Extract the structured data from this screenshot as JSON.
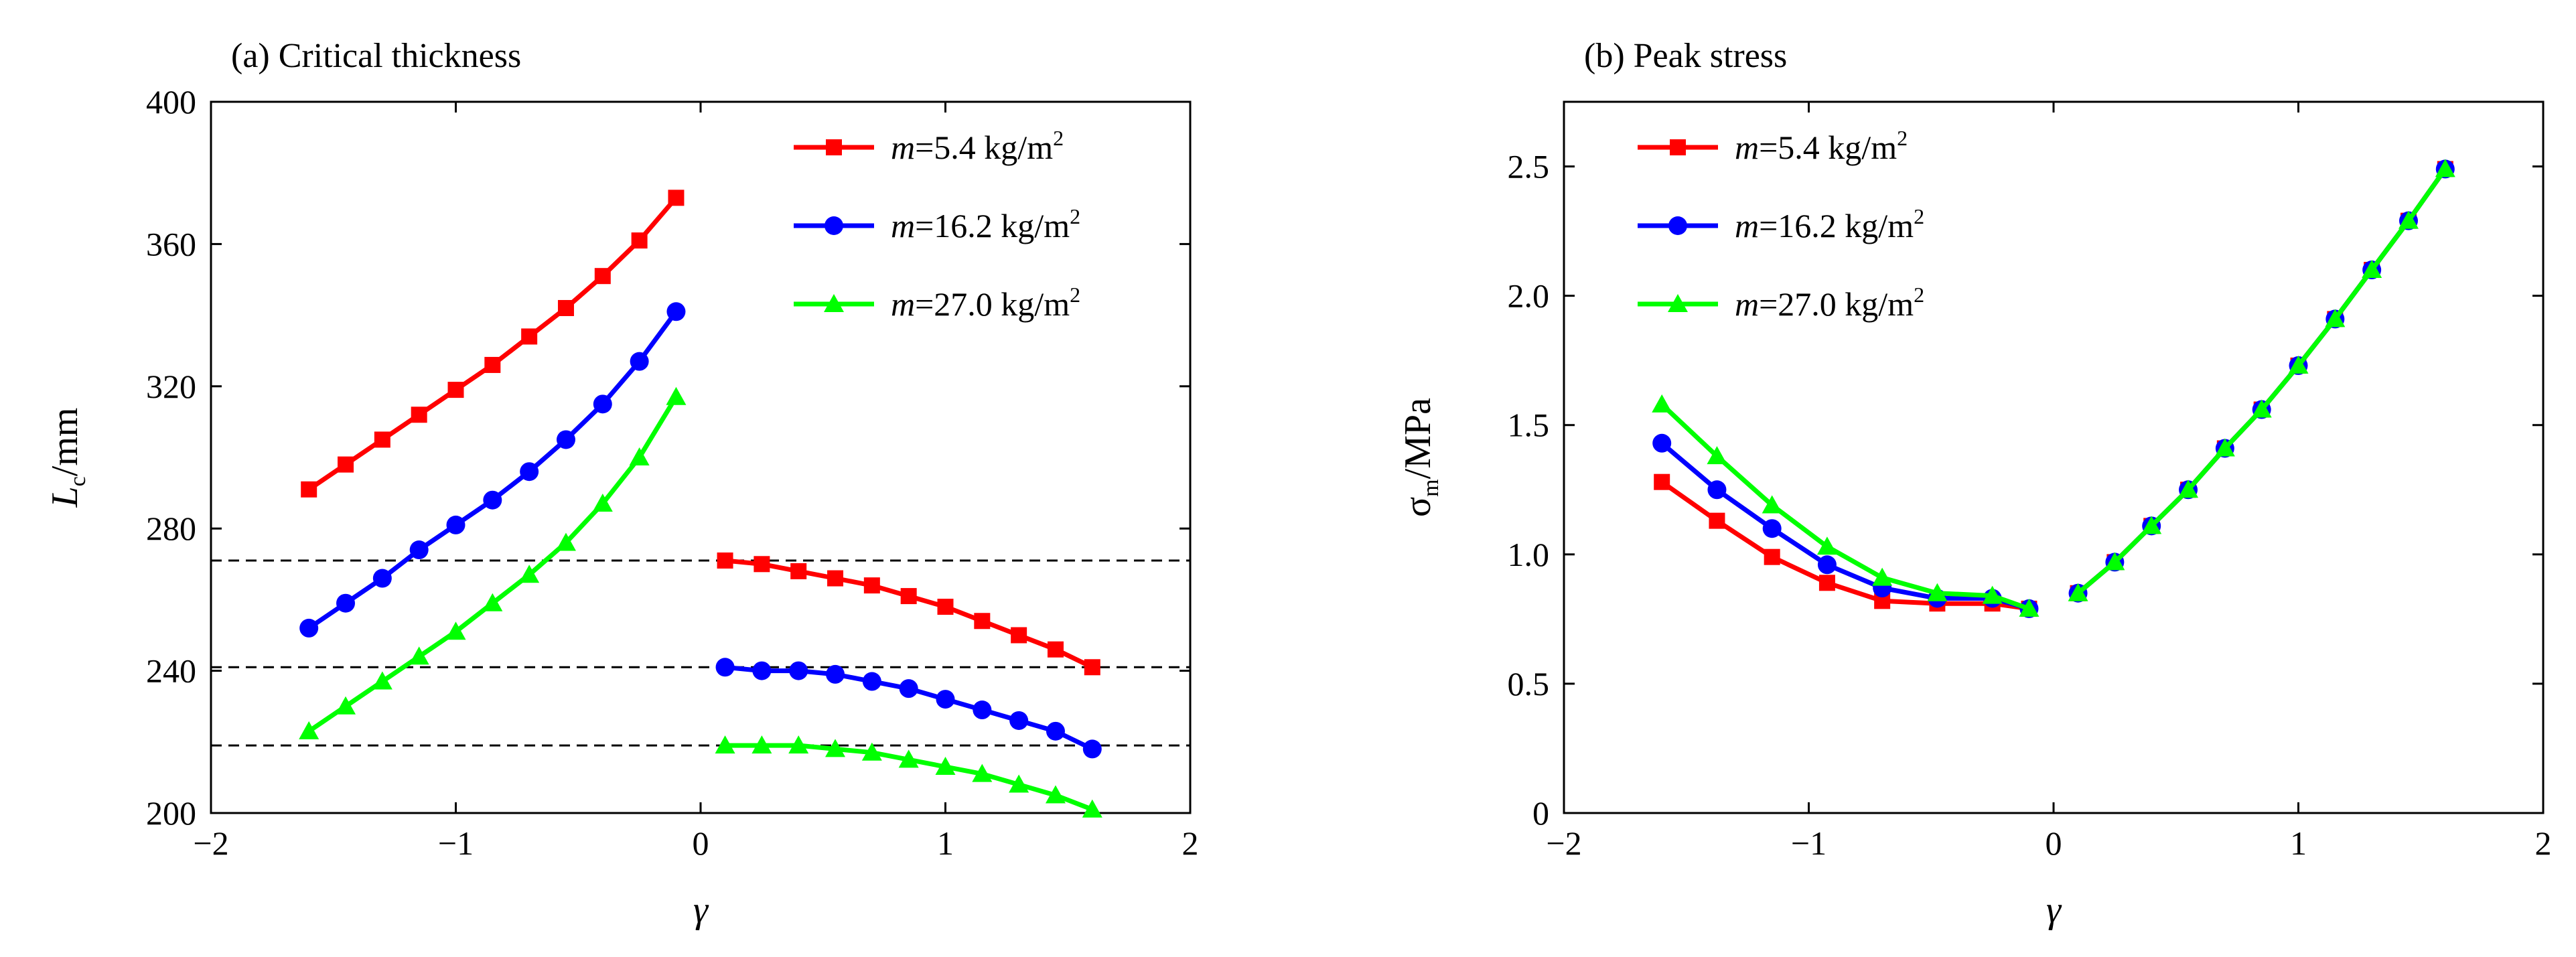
{
  "chart_data": [
    {
      "type": "line",
      "title": "(a) Critical thickness",
      "xlabel": "γ",
      "ylabel": {
        "main": "L",
        "sub": "c",
        "unit": "/mm"
      },
      "xlim": [
        -2,
        2
      ],
      "ylim": [
        200,
        400
      ],
      "xticks": [
        -2,
        -1,
        0,
        1,
        2
      ],
      "xtick_labels": [
        "−2",
        "−1",
        "0",
        "1",
        "2"
      ],
      "yticks": [
        200,
        240,
        280,
        320,
        360,
        400
      ],
      "ytick_labels": [
        "200",
        "240",
        "280",
        "320",
        "360",
        "400"
      ],
      "grid": false,
      "legend_position": "top-right",
      "reference_lines": [
        {
          "y": 271,
          "style": "dashed",
          "color": "#000000"
        },
        {
          "y": 241,
          "style": "dashed",
          "color": "#000000"
        },
        {
          "y": 219,
          "style": "dashed",
          "color": "#000000"
        }
      ],
      "series": [
        {
          "name": "m=5.4 kg/m²",
          "legend": {
            "var": "m",
            "rest": "=5.4 kg/m",
            "sup": "2"
          },
          "color": "#ff0000",
          "marker": "square",
          "segments": [
            {
              "x": [
                -1.6,
                -1.45,
                -1.3,
                -1.15,
                -1.0,
                -0.85,
                -0.7,
                -0.55,
                -0.4,
                -0.25,
                -0.1
              ],
              "y": [
                291,
                298,
                305,
                312,
                319,
                326,
                334,
                342,
                351,
                361,
                373
              ]
            },
            {
              "x": [
                0.1,
                0.25,
                0.4,
                0.55,
                0.7,
                0.85,
                1.0,
                1.15,
                1.3,
                1.45,
                1.6
              ],
              "y": [
                271,
                270,
                268,
                266,
                264,
                261,
                258,
                254,
                250,
                246,
                241
              ]
            }
          ]
        },
        {
          "name": "m=16.2 kg/m²",
          "legend": {
            "var": "m",
            "rest": "=16.2 kg/m",
            "sup": "2"
          },
          "color": "#0000ff",
          "marker": "circle",
          "segments": [
            {
              "x": [
                -1.6,
                -1.45,
                -1.3,
                -1.15,
                -1.0,
                -0.85,
                -0.7,
                -0.55,
                -0.4,
                -0.25,
                -0.1
              ],
              "y": [
                252,
                259,
                266,
                274,
                281,
                288,
                296,
                305,
                315,
                327,
                341
              ]
            },
            {
              "x": [
                0.1,
                0.25,
                0.4,
                0.55,
                0.7,
                0.85,
                1.0,
                1.15,
                1.3,
                1.45,
                1.6
              ],
              "y": [
                241,
                240,
                240,
                239,
                237,
                235,
                232,
                229,
                226,
                223,
                218
              ]
            }
          ]
        },
        {
          "name": "m=27.0 kg/m²",
          "legend": {
            "var": "m",
            "rest": "=27.0 kg/m",
            "sup": "2"
          },
          "color": "#00ff00",
          "marker": "triangle",
          "segments": [
            {
              "x": [
                -1.6,
                -1.45,
                -1.3,
                -1.15,
                -1.0,
                -0.85,
                -0.7,
                -0.55,
                -0.4,
                -0.25,
                -0.1
              ],
              "y": [
                223,
                230,
                237,
                244,
                251,
                259,
                267,
                276,
                287,
                300,
                317
              ]
            },
            {
              "x": [
                0.1,
                0.25,
                0.4,
                0.55,
                0.7,
                0.85,
                1.0,
                1.15,
                1.3,
                1.45,
                1.6
              ],
              "y": [
                219,
                219,
                219,
                218,
                217,
                215,
                213,
                211,
                208,
                205,
                201
              ]
            }
          ]
        }
      ]
    },
    {
      "type": "line",
      "title": "(b) Peak stress",
      "xlabel": "γ",
      "ylabel": {
        "main": "σ",
        "sub": "m",
        "unit": "/MPa"
      },
      "xlim": [
        -2,
        2
      ],
      "ylim": [
        0,
        2.75
      ],
      "xticks": [
        -2,
        -1,
        0,
        1,
        2
      ],
      "xtick_labels": [
        "−2",
        "−1",
        "0",
        "1",
        "2"
      ],
      "yticks": [
        0,
        0.5,
        1.0,
        1.5,
        2.0,
        2.5
      ],
      "ytick_labels": [
        "0",
        "0.5",
        "1.0",
        "1.5",
        "2.0",
        "2.5"
      ],
      "grid": false,
      "legend_position": "top-left",
      "series": [
        {
          "name": "m=5.4 kg/m²",
          "legend": {
            "var": "m",
            "rest": "=5.4 kg/m",
            "sup": "2"
          },
          "color": "#ff0000",
          "marker": "square",
          "segments": [
            {
              "x": [
                -1.6,
                -1.375,
                -1.15,
                -0.925,
                -0.7,
                -0.475,
                -0.25,
                -0.1
              ],
              "y": [
                1.28,
                1.13,
                0.99,
                0.89,
                0.82,
                0.81,
                0.81,
                0.79
              ]
            },
            {
              "x": [
                0.1,
                0.25,
                0.4,
                0.55,
                0.7,
                0.85,
                1.0,
                1.15,
                1.3,
                1.45,
                1.6
              ],
              "y": [
                0.85,
                0.97,
                1.11,
                1.25,
                1.41,
                1.56,
                1.73,
                1.91,
                2.1,
                2.29,
                2.49
              ]
            }
          ]
        },
        {
          "name": "m=16.2 kg/m²",
          "legend": {
            "var": "m",
            "rest": "=16.2 kg/m",
            "sup": "2"
          },
          "color": "#0000ff",
          "marker": "circle",
          "segments": [
            {
              "x": [
                -1.6,
                -1.375,
                -1.15,
                -0.925,
                -0.7,
                -0.475,
                -0.25,
                -0.1
              ],
              "y": [
                1.43,
                1.25,
                1.1,
                0.96,
                0.87,
                0.83,
                0.83,
                0.79
              ]
            },
            {
              "x": [
                0.1,
                0.25,
                0.4,
                0.55,
                0.7,
                0.85,
                1.0,
                1.15,
                1.3,
                1.45,
                1.6
              ],
              "y": [
                0.85,
                0.97,
                1.11,
                1.25,
                1.41,
                1.56,
                1.73,
                1.91,
                2.1,
                2.29,
                2.49
              ]
            }
          ]
        },
        {
          "name": "m=27.0 kg/m²",
          "legend": {
            "var": "m",
            "rest": "=27.0 kg/m",
            "sup": "2"
          },
          "color": "#00ff00",
          "marker": "triangle",
          "segments": [
            {
              "x": [
                -1.6,
                -1.375,
                -1.15,
                -0.925,
                -0.7,
                -0.475,
                -0.25,
                -0.1
              ],
              "y": [
                1.58,
                1.38,
                1.19,
                1.03,
                0.91,
                0.85,
                0.84,
                0.79
              ]
            },
            {
              "x": [
                0.1,
                0.25,
                0.4,
                0.55,
                0.7,
                0.85,
                1.0,
                1.15,
                1.3,
                1.45,
                1.6
              ],
              "y": [
                0.85,
                0.97,
                1.11,
                1.25,
                1.41,
                1.56,
                1.73,
                1.91,
                2.1,
                2.29,
                2.49
              ]
            }
          ]
        }
      ]
    }
  ]
}
